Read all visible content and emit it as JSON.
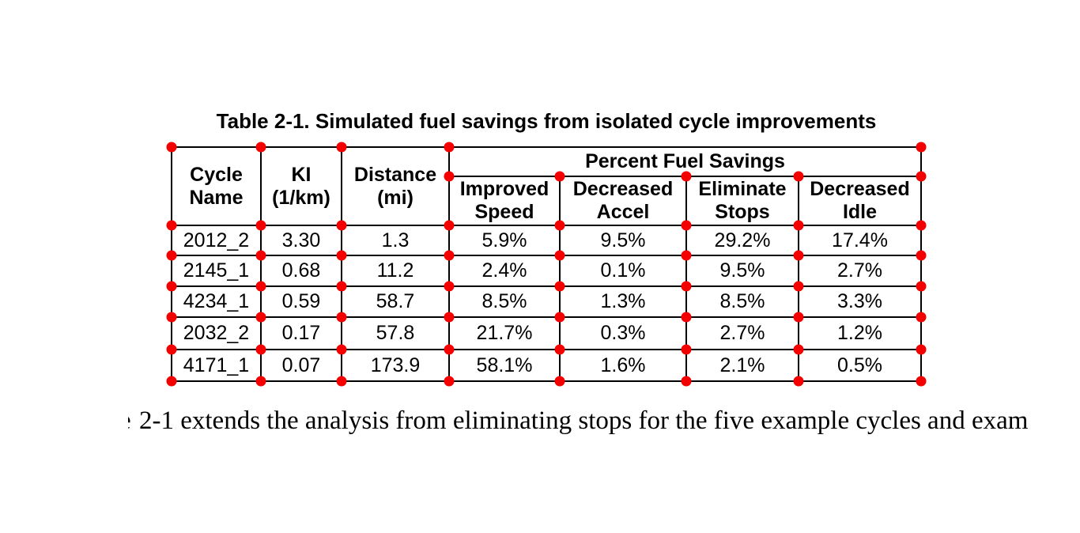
{
  "title": "Table 2-1. Simulated fuel savings from isolated cycle improvements",
  "table": {
    "group_header": "Percent Fuel Savings",
    "headers": {
      "cycle": [
        "Cycle",
        "Name"
      ],
      "ki": [
        "KI",
        "(1/km)"
      ],
      "distance": [
        "Distance",
        "(mi)"
      ],
      "improved_speed": [
        "Improved",
        "Speed"
      ],
      "decreased_accel": [
        "Decreased",
        "Accel"
      ],
      "eliminate_stops": [
        "Eliminate",
        "Stops"
      ],
      "decreased_idle": [
        "Decreased",
        "Idle"
      ]
    },
    "rows": [
      {
        "cycle": "2012_2",
        "ki": "3.30",
        "distance": "1.3",
        "improved_speed": "5.9%",
        "decreased_accel": "9.5%",
        "eliminate_stops": "29.2%",
        "decreased_idle": "17.4%"
      },
      {
        "cycle": "2145_1",
        "ki": "0.68",
        "distance": "11.2",
        "improved_speed": "2.4%",
        "decreased_accel": "0.1%",
        "eliminate_stops": "9.5%",
        "decreased_idle": "2.7%"
      },
      {
        "cycle": "4234_1",
        "ki": "0.59",
        "distance": "58.7",
        "improved_speed": "8.5%",
        "decreased_accel": "1.3%",
        "eliminate_stops": "8.5%",
        "decreased_idle": "3.3%"
      },
      {
        "cycle": "2032_2",
        "ki": "0.17",
        "distance": "57.8",
        "improved_speed": "21.7%",
        "decreased_accel": "0.3%",
        "eliminate_stops": "2.7%",
        "decreased_idle": "1.2%"
      },
      {
        "cycle": "4171_1",
        "ki": "0.07",
        "distance": "173.9",
        "improved_speed": "58.1%",
        "decreased_accel": "1.6%",
        "eliminate_stops": "2.1%",
        "decreased_idle": "0.5%"
      }
    ]
  },
  "paragraph": {
    "fragment": "e",
    "text": "2-1 extends the analysis from eliminating stops for the five example cycles and exam"
  },
  "annotations": {
    "marker_color": "#f40000"
  },
  "colors": {
    "background": "#ffffff",
    "text": "#000000",
    "grid_line": "#000000"
  }
}
